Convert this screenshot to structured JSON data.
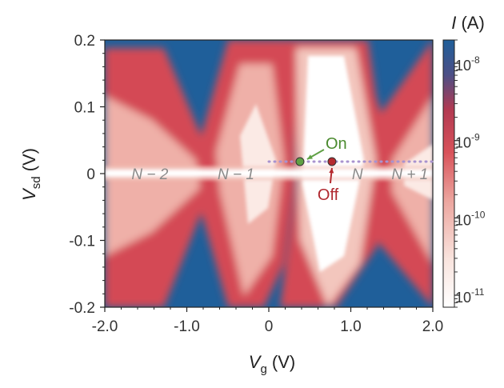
{
  "chart_data": {
    "type": "heatmap",
    "title": "",
    "xlabel_main": "V",
    "xlabel_sub": "g",
    "xlabel_unit": " (V)",
    "ylabel_main": "V",
    "ylabel_sub": "sd",
    "ylabel_unit": " (V)",
    "xlim": [
      -2.0,
      2.0
    ],
    "ylim": [
      -0.2,
      0.2
    ],
    "x_ticks": [
      -2.0,
      -1.0,
      0,
      1.0,
      2.0
    ],
    "x_tick_labels": [
      "-2.0",
      "-1.0",
      "0",
      "1.0",
      "2.0"
    ],
    "y_ticks": [
      0.2,
      0.1,
      0,
      -0.1,
      -0.2
    ],
    "y_tick_labels": [
      "0.2",
      "0.1",
      "0",
      "-0.1",
      "-0.2"
    ],
    "colorbar": {
      "title_italic": "I",
      "title_unit": " (A)",
      "scale": "log",
      "range": [
        7e-12,
        2e-08
      ],
      "tick_base": "10",
      "ticks": [
        {
          "value": 1e-08,
          "exp": "-8"
        },
        {
          "value": 1e-09,
          "exp": "-9"
        },
        {
          "value": 1e-10,
          "exp": "-10"
        },
        {
          "value": 1e-11,
          "exp": "-11"
        }
      ],
      "colors": [
        "#ffffff",
        "#f6d8d0",
        "#e58a82",
        "#cf3c46",
        "#a33a5c",
        "#1f5f9a"
      ]
    },
    "region_labels": [
      {
        "text": "N − 2",
        "x": -1.45,
        "y": 0
      },
      {
        "text": "N − 1",
        "x": -0.4,
        "y": 0
      },
      {
        "text": "N",
        "x": 1.08,
        "y": 0
      },
      {
        "text": "N + 1",
        "x": 1.72,
        "y": 0
      }
    ],
    "guide_line": {
      "y": 0.018,
      "x_from": 0.0,
      "x_to": 2.0,
      "color": "#a993cf"
    },
    "markers": [
      {
        "label": "On",
        "x": 0.38,
        "y": 0.018,
        "color": "#5fa044"
      },
      {
        "label": "Off",
        "x": 0.77,
        "y": 0.018,
        "color": "#b52a2f"
      }
    ]
  }
}
